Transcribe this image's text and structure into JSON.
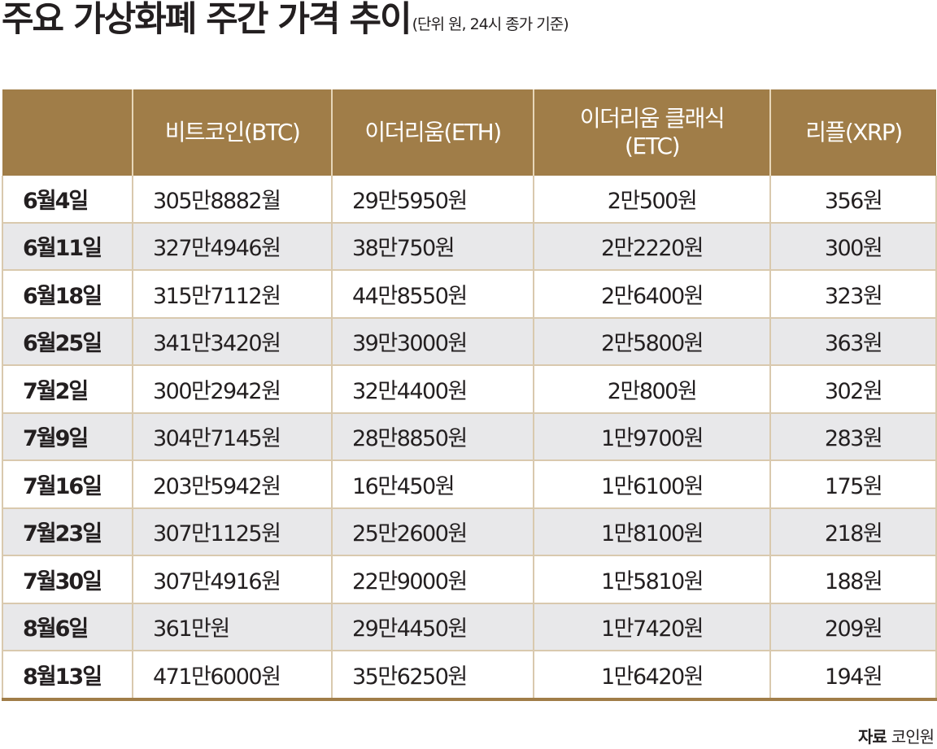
{
  "chart_data": {
    "type": "table",
    "title": "주요 가상화폐 주간 가격 추이",
    "subtitle": "(단위 원, 24시 종가 기준)",
    "columns": [
      "",
      "비트코인(BTC)",
      "이더리움(ETH)",
      "이더리움 클래식 (ETC)",
      "리플(XRP)"
    ],
    "rows": [
      {
        "date": "6월4일",
        "btc": "305만8882월",
        "eth": "29만5950원",
        "etc": "2만500원",
        "xrp": "356원"
      },
      {
        "date": "6월11일",
        "btc": "327만4946원",
        "eth": "38만750원",
        "etc": "2만2220원",
        "xrp": "300원"
      },
      {
        "date": "6월18일",
        "btc": "315만7112원",
        "eth": "44만8550원",
        "etc": "2만6400원",
        "xrp": "323원"
      },
      {
        "date": "6월25일",
        "btc": "341만3420원",
        "eth": "39만3000원",
        "etc": "2만5800원",
        "xrp": "363원"
      },
      {
        "date": "7월2일",
        "btc": "300만2942원",
        "eth": "32만4400원",
        "etc": "2만800원",
        "xrp": "302원"
      },
      {
        "date": "7월9일",
        "btc": "304만7145원",
        "eth": "28만8850원",
        "etc": "1만9700원",
        "xrp": "283원"
      },
      {
        "date": "7월16일",
        "btc": "203만5942원",
        "eth": "16만450원",
        "etc": "1만6100원",
        "xrp": "175원"
      },
      {
        "date": "7월23일",
        "btc": "307만1125원",
        "eth": "25만2600원",
        "etc": "1만8100원",
        "xrp": "218원"
      },
      {
        "date": "7월30일",
        "btc": "307만4916원",
        "eth": "22만9000원",
        "etc": "1만5810원",
        "xrp": "188원"
      },
      {
        "date": "8월6일",
        "btc": "361만원",
        "eth": "29만4450원",
        "etc": "1만7420원",
        "xrp": "209원"
      },
      {
        "date": "8월13일",
        "btc": "471만6000원",
        "eth": "35만6250원",
        "etc": "1만6420원",
        "xrp": "194원"
      }
    ],
    "series": [
      {
        "name": "비트코인(BTC)",
        "values": [
          3058882,
          3274946,
          3157112,
          3413420,
          3002942,
          3047145,
          2035942,
          3071125,
          3074916,
          3610000,
          4716000
        ]
      },
      {
        "name": "이더리움(ETH)",
        "values": [
          295950,
          380750,
          448550,
          393000,
          324400,
          288850,
          160450,
          252600,
          229000,
          294450,
          356250
        ]
      },
      {
        "name": "이더리움 클래식(ETC)",
        "values": [
          20500,
          22220,
          26400,
          25800,
          20800,
          19700,
          16100,
          18100,
          15810,
          17420,
          16420
        ]
      },
      {
        "name": "리플(XRP)",
        "values": [
          356,
          300,
          323,
          363,
          302,
          283,
          175,
          218,
          188,
          209,
          194
        ]
      }
    ],
    "categories": [
      "6월4일",
      "6월11일",
      "6월18일",
      "6월25일",
      "7월2일",
      "7월9일",
      "7월16일",
      "7월23일",
      "7월30일",
      "8월6일",
      "8월13일"
    ],
    "source_label": "자료",
    "source_name": "코인원"
  },
  "header": {
    "title": "주요 가상화폐 주간 가격 추이",
    "subtitle": "(단위 원, 24시 종가 기준)"
  },
  "table": {
    "headers": {
      "date": "",
      "btc": "비트코인(BTC)",
      "eth": "이더리움(ETH)",
      "etc_line1": "이더리움 클래식",
      "etc_line2": "(ETC)",
      "xrp": "리플(XRP)"
    }
  },
  "footer": {
    "source_label": "자료",
    "source_name": "코인원"
  },
  "colors": {
    "header_bg": "#a07d48",
    "stripe_bg": "#e8e8ea",
    "border": "#d9c9ae",
    "text": "#231f20"
  }
}
